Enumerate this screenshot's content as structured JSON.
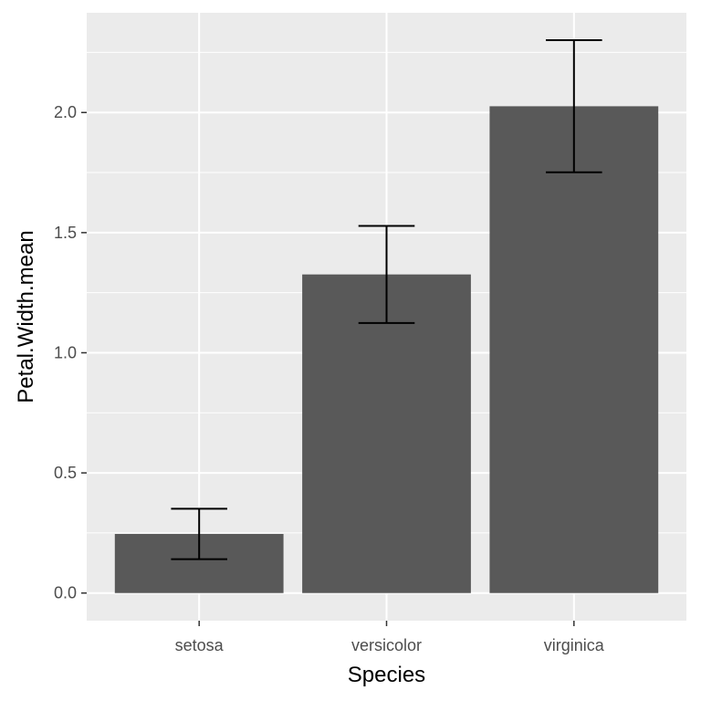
{
  "chart_data": {
    "type": "bar",
    "categories": [
      "setosa",
      "versicolor",
      "virginica"
    ],
    "values": [
      0.246,
      1.326,
      2.026
    ],
    "error_low": [
      0.141,
      1.124,
      1.751
    ],
    "error_high": [
      0.351,
      1.528,
      2.301
    ],
    "xlabel": "Species",
    "ylabel": "Petal.Width.mean",
    "ylim": [
      -0.115,
      2.415
    ],
    "yticks": [
      0.0,
      0.5,
      1.0,
      1.5,
      2.0
    ],
    "ytick_labels": [
      "0.0",
      "0.5",
      "1.0",
      "1.5",
      "2.0"
    ],
    "grid": true,
    "colors": {
      "panel_background": "#ebebeb",
      "grid_major": "#ffffff",
      "bar_fill": "#595959",
      "error_bar": "#000000",
      "tick_label": "#4d4d4d",
      "axis_title": "#000000"
    }
  }
}
